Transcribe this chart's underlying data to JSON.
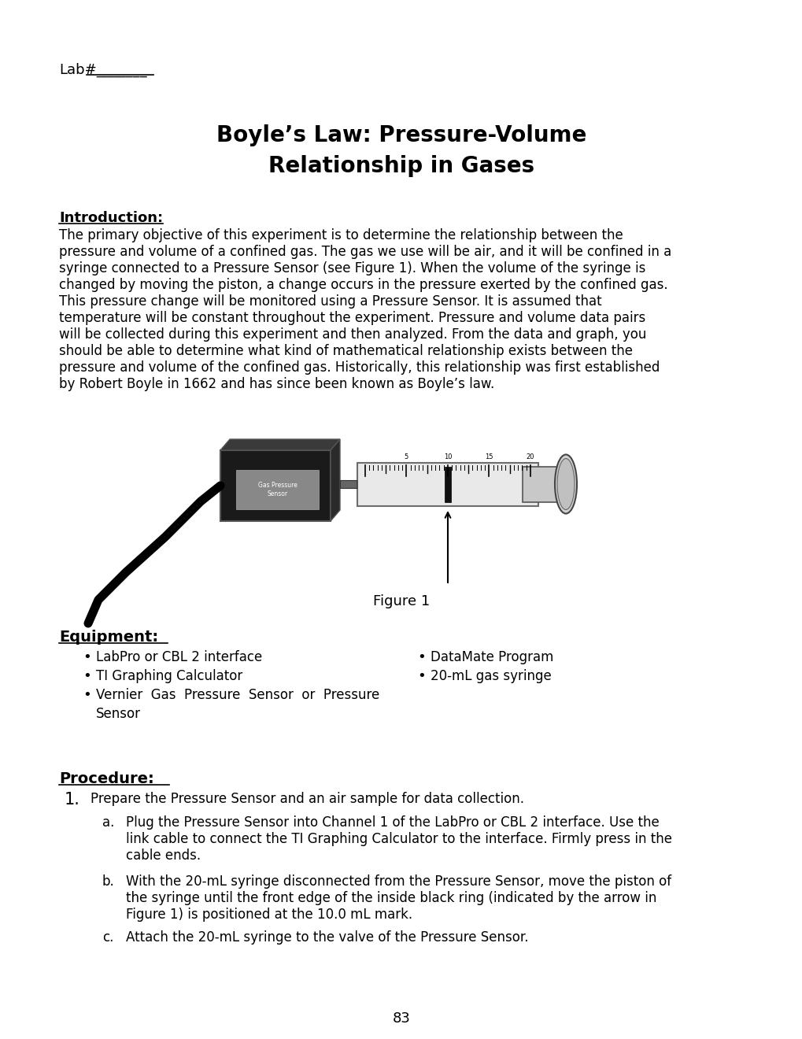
{
  "bg_color": "#ffffff",
  "lab_label": "Lab#_______",
  "title_line1": "Boyle’s Law: Pressure-Volume",
  "title_line2": "Relationship in Gases",
  "intro_heading": "Introduction:",
  "intro_lines": [
    "The primary objective of this experiment is to determine the relationship between the",
    "pressure and volume of a confined gas. The gas we use will be air, and it will be confined in a",
    "syringe connected to a Pressure Sensor (see Figure 1). When the volume of the syringe is",
    "changed by moving the piston, a change occurs in the pressure exerted by the confined gas.",
    "This pressure change will be monitored using a Pressure Sensor. It is assumed that",
    "temperature will be constant throughout the experiment. Pressure and volume data pairs",
    "will be collected during this experiment and then analyzed. From the data and graph, you",
    "should be able to determine what kind of mathematical relationship exists between the",
    "pressure and volume of the confined gas. Historically, this relationship was first established",
    "by Robert Boyle in 1662 and has since been known as Boyle’s law."
  ],
  "figure_caption": "Figure 1",
  "equipment_heading": "Equipment:",
  "equipment_col1": [
    "LabPro or CBL 2 interface",
    "TI Graphing Calculator",
    "Vernier  Gas  Pressure  Sensor  or  Pressure",
    "    Sensor"
  ],
  "equipment_col2": [
    "DataMate Program",
    "20-mL gas syringe"
  ],
  "procedure_heading": "Procedure:",
  "proc_step1": "Prepare the Pressure Sensor and an air sample for data collection.",
  "proc_a_lines": [
    "Plug the Pressure Sensor into Channel 1 of the LabPro or CBL 2 interface. Use the",
    "link cable to connect the TI Graphing Calculator to the interface. Firmly press in the",
    "cable ends."
  ],
  "proc_b_lines": [
    "With the 20-mL syringe disconnected from the Pressure Sensor, move the piston of",
    "the syringe until the front edge of the inside black ring (indicated by the arrow in",
    "Figure 1) is positioned at the 10.0 mL mark."
  ],
  "proc_c": "Attach the 20-mL syringe to the valve of the Pressure Sensor.",
  "page_number": "83"
}
